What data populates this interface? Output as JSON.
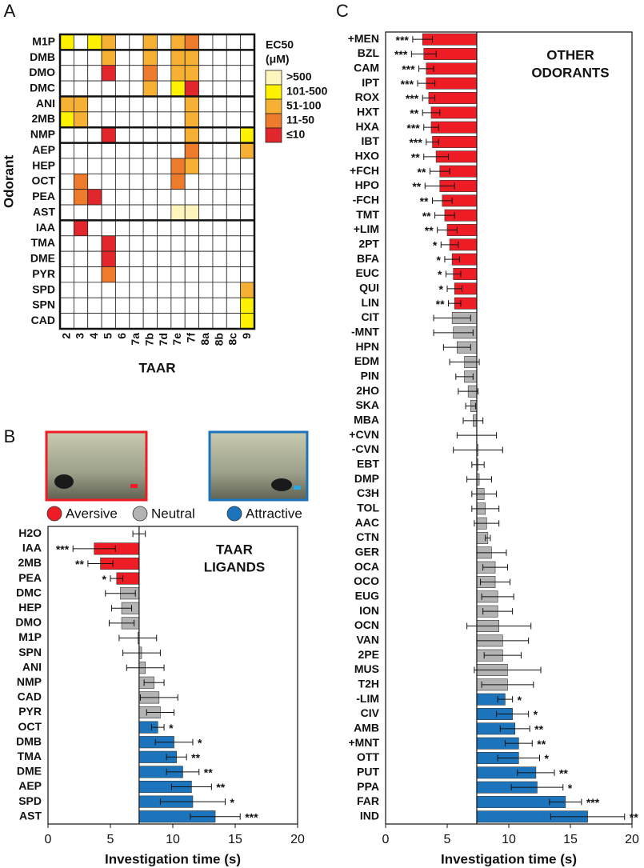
{
  "chart_data": [
    {
      "type": "heatmap",
      "panel": "A",
      "ylabel": "Odorant",
      "xlabel": "TAAR",
      "rows": [
        "M1P",
        "DMB",
        "DMO",
        "DMC",
        "ANI",
        "2MB",
        "NMP",
        "AEP",
        "HEP",
        "OCT",
        "PEA",
        "AST",
        "IAA",
        "TMA",
        "DME",
        "PYR",
        "SPD",
        "SPN",
        "CAD"
      ],
      "columns": [
        "2",
        "3",
        "4",
        "5",
        "6",
        "7a",
        "7b",
        "7d",
        "7e",
        "7f",
        "8a",
        "8b",
        "8c",
        "9"
      ],
      "legend_title": [
        "EC50",
        "(μM)"
      ],
      "levels": [
        {
          "label": ">500",
          "color": "#fdf5bd"
        },
        {
          "label": "101-500",
          "color": "#fff200"
        },
        {
          "label": "51-100",
          "color": "#f6b134"
        },
        {
          "label": "11-50",
          "color": "#ee7b2b"
        },
        {
          "label": "≤10",
          "color": "#e2272c"
        }
      ],
      "values": [
        [
          "101-500",
          null,
          "101-500",
          "51-100",
          null,
          null,
          "51-100",
          null,
          "51-100",
          "11-50",
          null,
          null,
          null,
          null
        ],
        [
          null,
          null,
          null,
          "51-100",
          null,
          null,
          "51-100",
          null,
          "51-100",
          "51-100",
          null,
          null,
          null,
          null
        ],
        [
          null,
          null,
          null,
          "≤10",
          null,
          null,
          "11-50",
          null,
          "51-100",
          "51-100",
          null,
          null,
          null,
          null
        ],
        [
          null,
          null,
          null,
          null,
          null,
          null,
          "51-100",
          null,
          "101-500",
          "≤10",
          null,
          null,
          null,
          null
        ],
        [
          "51-100",
          "51-100",
          null,
          null,
          null,
          null,
          null,
          null,
          null,
          "51-100",
          null,
          null,
          null,
          null
        ],
        [
          "101-500",
          "51-100",
          null,
          null,
          null,
          null,
          null,
          null,
          null,
          "51-100",
          null,
          null,
          null,
          null
        ],
        [
          null,
          null,
          null,
          "≤10",
          null,
          null,
          null,
          null,
          null,
          "51-100",
          null,
          null,
          null,
          "101-500"
        ],
        [
          null,
          null,
          null,
          null,
          null,
          null,
          null,
          null,
          null,
          "11-50",
          null,
          null,
          null,
          "51-100"
        ],
        [
          null,
          null,
          null,
          null,
          null,
          null,
          null,
          null,
          "11-50",
          "51-100",
          null,
          null,
          null,
          null
        ],
        [
          null,
          "11-50",
          null,
          null,
          null,
          null,
          null,
          null,
          "11-50",
          null,
          null,
          null,
          null,
          null
        ],
        [
          null,
          "11-50",
          "≤10",
          null,
          null,
          null,
          null,
          null,
          null,
          null,
          null,
          null,
          null,
          null
        ],
        [
          null,
          null,
          null,
          null,
          null,
          null,
          null,
          null,
          ">500",
          ">500",
          null,
          null,
          null,
          null
        ],
        [
          null,
          "≤10",
          null,
          null,
          null,
          null,
          null,
          null,
          null,
          null,
          null,
          null,
          null,
          null
        ],
        [
          null,
          null,
          null,
          "≤10",
          null,
          null,
          null,
          null,
          null,
          null,
          null,
          null,
          null,
          null
        ],
        [
          null,
          null,
          null,
          "≤10",
          null,
          null,
          null,
          null,
          null,
          null,
          null,
          null,
          null,
          null
        ],
        [
          null,
          null,
          null,
          "11-50",
          null,
          null,
          null,
          null,
          null,
          null,
          null,
          null,
          null,
          null
        ],
        [
          null,
          null,
          null,
          null,
          null,
          null,
          null,
          null,
          null,
          null,
          null,
          null,
          null,
          "51-100"
        ],
        [
          null,
          null,
          null,
          null,
          null,
          null,
          null,
          null,
          null,
          null,
          null,
          null,
          null,
          "101-500"
        ],
        [
          null,
          null,
          null,
          null,
          null,
          null,
          null,
          null,
          null,
          null,
          null,
          null,
          null,
          "101-500"
        ]
      ]
    },
    {
      "type": "hbar",
      "panel": "B",
      "xlabel": "Investigation time (s)",
      "annotation": [
        "TAAR",
        "LIGANDS"
      ],
      "legend": [
        {
          "name": "Aversive",
          "color": "#ee1c24"
        },
        {
          "name": "Neutral",
          "color": "#b3b3b3"
        },
        {
          "name": "Attractive",
          "color": "#1c75bc"
        }
      ],
      "xlim": [
        0,
        20
      ],
      "xticks": [
        0,
        5,
        10,
        15,
        20
      ],
      "baseline": 7.3,
      "categories": [
        "H2O",
        "IAA",
        "2MB",
        "PEA",
        "DMC",
        "HEP",
        "DMO",
        "M1P",
        "SPN",
        "ANI",
        "NMP",
        "CAD",
        "PYR",
        "OCT",
        "DMB",
        "TMA",
        "DME",
        "AEP",
        "SPD",
        "AST"
      ],
      "values": [
        7.3,
        3.7,
        4.2,
        5.5,
        5.8,
        5.9,
        5.9,
        7.2,
        7.5,
        7.8,
        8.5,
        8.9,
        9.0,
        8.8,
        10.1,
        10.3,
        10.8,
        11.5,
        11.6,
        13.4
      ],
      "errors": [
        0.5,
        1.7,
        1.0,
        0.5,
        1.2,
        0.8,
        1.0,
        1.5,
        1.5,
        1.5,
        0.8,
        1.5,
        1.1,
        0.5,
        1.5,
        0.8,
        1.3,
        1.6,
        2.6,
        2.0
      ],
      "significance": [
        null,
        "***",
        "**",
        "*",
        null,
        null,
        null,
        null,
        null,
        null,
        null,
        null,
        null,
        "*",
        "*",
        "**",
        "**",
        "**",
        "*",
        "***"
      ],
      "colors": [
        "#b3b3b3",
        "#ee1c24",
        "#ee1c24",
        "#ee1c24",
        "#b3b3b3",
        "#b3b3b3",
        "#b3b3b3",
        "#b3b3b3",
        "#b3b3b3",
        "#b3b3b3",
        "#b3b3b3",
        "#b3b3b3",
        "#b3b3b3",
        "#1c75bc",
        "#1c75bc",
        "#1c75bc",
        "#1c75bc",
        "#1c75bc",
        "#1c75bc",
        "#1c75bc"
      ]
    },
    {
      "type": "hbar",
      "panel": "C",
      "xlabel": "Investigation time (s)",
      "annotation": [
        "OTHER",
        "ODORANTS"
      ],
      "xlim": [
        0,
        20
      ],
      "xticks": [
        0,
        5,
        10,
        15,
        20
      ],
      "baseline": 7.4,
      "categories": [
        "+MEN",
        "BZL",
        "CAM",
        "IPT",
        "ROX",
        "HXT",
        "HXA",
        "IBT",
        "HXO",
        "+FCH",
        "HPO",
        "-FCH",
        "TMT",
        "+LIM",
        "2PT",
        "BFA",
        "EUC",
        "QUI",
        "LIN",
        "CIT",
        "-MNT",
        "HPN",
        "EDM",
        "PIN",
        "2HO",
        "SKA",
        "MBA",
        "+CVN",
        "-CVN",
        "EBT",
        "DMP",
        "C3H",
        "TOL",
        "AAC",
        "CTN",
        "GER",
        "OCA",
        "OCO",
        "EUG",
        "ION",
        "OCN",
        "VAN",
        "2PE",
        "MUS",
        "T2H",
        "-LIM",
        "CIV",
        "AMB",
        "+MNT",
        "OTT",
        "PUT",
        "PPA",
        "FAR",
        "IND"
      ],
      "values": [
        3.0,
        3.1,
        3.3,
        3.3,
        3.5,
        3.7,
        3.7,
        3.8,
        4.1,
        4.4,
        4.4,
        4.6,
        4.8,
        5.0,
        5.2,
        5.4,
        5.5,
        5.6,
        5.6,
        5.4,
        5.5,
        5.8,
        6.4,
        6.4,
        6.7,
        6.9,
        7.1,
        7.4,
        7.5,
        7.5,
        7.6,
        8.0,
        8.1,
        8.2,
        8.3,
        8.6,
        8.9,
        8.9,
        9.1,
        9.1,
        9.2,
        9.5,
        9.5,
        9.9,
        9.9,
        9.7,
        10.3,
        10.5,
        10.8,
        10.8,
        12.2,
        12.3,
        14.6,
        16.4
      ],
      "errors": [
        0.8,
        1.0,
        0.6,
        0.7,
        0.5,
        0.7,
        0.6,
        0.5,
        1.0,
        0.8,
        1.2,
        0.8,
        0.8,
        0.8,
        0.7,
        0.6,
        0.6,
        0.6,
        0.5,
        1.5,
        1.6,
        1.1,
        1.2,
        0.7,
        0.8,
        0.4,
        0.8,
        1.6,
        2.0,
        0.5,
        1.0,
        1.0,
        1.1,
        1.0,
        0.2,
        1.2,
        1.0,
        1.2,
        1.3,
        1.2,
        2.6,
        2.1,
        1.5,
        2.7,
        2.1,
        0.6,
        1.3,
        1.2,
        1.1,
        1.7,
        1.5,
        2.1,
        1.3,
        3.0
      ],
      "significance": [
        "***",
        "***",
        "***",
        "***",
        "***",
        "**",
        "***",
        "***",
        "**",
        "**",
        "**",
        "**",
        "**",
        "**",
        "*",
        "*",
        "*",
        "*",
        "**",
        null,
        null,
        null,
        null,
        null,
        null,
        null,
        null,
        null,
        null,
        null,
        null,
        null,
        null,
        null,
        null,
        null,
        null,
        null,
        null,
        null,
        null,
        null,
        null,
        null,
        null,
        "*",
        "*",
        "**",
        "**",
        "*",
        "**",
        "*",
        "***",
        "**"
      ],
      "colors": [
        "#ee1c24",
        "#ee1c24",
        "#ee1c24",
        "#ee1c24",
        "#ee1c24",
        "#ee1c24",
        "#ee1c24",
        "#ee1c24",
        "#ee1c24",
        "#ee1c24",
        "#ee1c24",
        "#ee1c24",
        "#ee1c24",
        "#ee1c24",
        "#ee1c24",
        "#ee1c24",
        "#ee1c24",
        "#ee1c24",
        "#ee1c24",
        "#b3b3b3",
        "#b3b3b3",
        "#b3b3b3",
        "#b3b3b3",
        "#b3b3b3",
        "#b3b3b3",
        "#b3b3b3",
        "#b3b3b3",
        "#b3b3b3",
        "#b3b3b3",
        "#b3b3b3",
        "#b3b3b3",
        "#b3b3b3",
        "#b3b3b3",
        "#b3b3b3",
        "#b3b3b3",
        "#b3b3b3",
        "#b3b3b3",
        "#b3b3b3",
        "#b3b3b3",
        "#b3b3b3",
        "#b3b3b3",
        "#b3b3b3",
        "#b3b3b3",
        "#b3b3b3",
        "#b3b3b3",
        "#1c75bc",
        "#1c75bc",
        "#1c75bc",
        "#1c75bc",
        "#1c75bc",
        "#1c75bc",
        "#1c75bc",
        "#1c75bc",
        "#1c75bc"
      ]
    }
  ]
}
